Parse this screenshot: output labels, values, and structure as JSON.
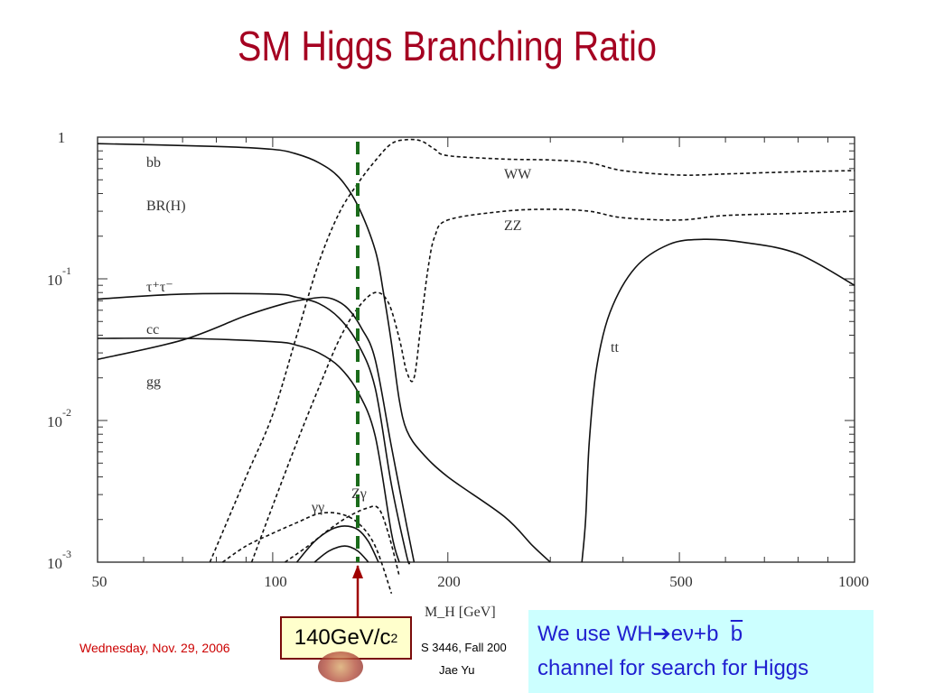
{
  "slide": {
    "title": "SM Higgs Branching Ratio"
  },
  "chart_data": {
    "type": "line",
    "x_scale": "log",
    "y_scale": "log",
    "xlabel": "M_H [GeV]",
    "ylabel": "BR(H)",
    "xlim": [
      50,
      1000
    ],
    "ylim": [
      0.001,
      1
    ],
    "x_ticks": [
      "50",
      "100",
      "200",
      "500",
      "1000"
    ],
    "y_ticks": [
      {
        "base": "1",
        "exp": ""
      },
      {
        "base": "10",
        "exp": "-1"
      },
      {
        "base": "10",
        "exp": "-2"
      },
      {
        "base": "10",
        "exp": "-3"
      }
    ],
    "series": [
      {
        "name": "bb",
        "dash": "solid",
        "points": [
          [
            50,
            0.9
          ],
          [
            80,
            0.86
          ],
          [
            100,
            0.82
          ],
          [
            110,
            0.76
          ],
          [
            120,
            0.66
          ],
          [
            130,
            0.52
          ],
          [
            140,
            0.33
          ],
          [
            150,
            0.16
          ],
          [
            155,
            0.08
          ],
          [
            160,
            0.035
          ],
          [
            165,
            0.014
          ],
          [
            170,
            0.0085
          ],
          [
            180,
            0.006
          ],
          [
            200,
            0.004
          ],
          [
            250,
            0.0021
          ],
          [
            280,
            0.0013
          ],
          [
            300,
            0.001
          ]
        ]
      },
      {
        "name": "τ⁺τ⁻",
        "dash": "solid",
        "points": [
          [
            50,
            0.072
          ],
          [
            70,
            0.078
          ],
          [
            100,
            0.078
          ],
          [
            110,
            0.074
          ],
          [
            120,
            0.067
          ],
          [
            130,
            0.053
          ],
          [
            140,
            0.035
          ],
          [
            150,
            0.017
          ],
          [
            160,
            0.0035
          ],
          [
            170,
            0.0011
          ],
          [
            172,
            0.001
          ]
        ]
      },
      {
        "name": "cc",
        "dash": "solid",
        "points": [
          [
            50,
            0.038
          ],
          [
            70,
            0.038
          ],
          [
            100,
            0.036
          ],
          [
            110,
            0.034
          ],
          [
            120,
            0.03
          ],
          [
            130,
            0.024
          ],
          [
            140,
            0.016
          ],
          [
            150,
            0.0078
          ],
          [
            160,
            0.0016
          ],
          [
            165,
            0.001
          ]
        ]
      },
      {
        "name": "gg",
        "dash": "solid",
        "points": [
          [
            50,
            0.027
          ],
          [
            70,
            0.037
          ],
          [
            90,
            0.055
          ],
          [
            105,
            0.067
          ],
          [
            115,
            0.072
          ],
          [
            122,
            0.074
          ],
          [
            128,
            0.071
          ],
          [
            135,
            0.061
          ],
          [
            142,
            0.045
          ],
          [
            150,
            0.027
          ],
          [
            160,
            0.0065
          ],
          [
            170,
            0.0018
          ],
          [
            175,
            0.001
          ]
        ]
      },
      {
        "name": "WW",
        "dash": "dashed",
        "points": [
          [
            78,
            0.001
          ],
          [
            90,
            0.004
          ],
          [
            100,
            0.011
          ],
          [
            110,
            0.04
          ],
          [
            120,
            0.13
          ],
          [
            130,
            0.29
          ],
          [
            140,
            0.47
          ],
          [
            150,
            0.68
          ],
          [
            160,
            0.9
          ],
          [
            170,
            0.96
          ],
          [
            180,
            0.94
          ],
          [
            190,
            0.82
          ],
          [
            200,
            0.74
          ],
          [
            250,
            0.7
          ],
          [
            300,
            0.69
          ],
          [
            350,
            0.66
          ],
          [
            400,
            0.58
          ],
          [
            500,
            0.54
          ],
          [
            600,
            0.55
          ],
          [
            800,
            0.57
          ],
          [
            1000,
            0.58
          ]
        ]
      },
      {
        "name": "ZZ",
        "dash": "dashed",
        "points": [
          [
            92,
            0.001
          ],
          [
            100,
            0.0025
          ],
          [
            110,
            0.007
          ],
          [
            120,
            0.017
          ],
          [
            130,
            0.037
          ],
          [
            140,
            0.062
          ],
          [
            150,
            0.08
          ],
          [
            158,
            0.068
          ],
          [
            165,
            0.038
          ],
          [
            170,
            0.022
          ],
          [
            175,
            0.02
          ],
          [
            180,
            0.05
          ],
          [
            185,
            0.12
          ],
          [
            190,
            0.2
          ],
          [
            200,
            0.26
          ],
          [
            250,
            0.3
          ],
          [
            300,
            0.31
          ],
          [
            350,
            0.3
          ],
          [
            400,
            0.27
          ],
          [
            500,
            0.26
          ],
          [
            600,
            0.28
          ],
          [
            800,
            0.29
          ],
          [
            1000,
            0.3
          ]
        ]
      },
      {
        "name": "tt",
        "dash": "solid",
        "points": [
          [
            340,
            0.001
          ],
          [
            345,
            0.002
          ],
          [
            350,
            0.007
          ],
          [
            360,
            0.023
          ],
          [
            380,
            0.058
          ],
          [
            420,
            0.12
          ],
          [
            480,
            0.175
          ],
          [
            550,
            0.19
          ],
          [
            650,
            0.18
          ],
          [
            800,
            0.15
          ],
          [
            1000,
            0.09
          ]
        ]
      },
      {
        "name": "γγ",
        "dash": "dashed",
        "points": [
          [
            82,
            0.001
          ],
          [
            90,
            0.0013
          ],
          [
            100,
            0.0016
          ],
          [
            110,
            0.0019
          ],
          [
            120,
            0.0022
          ],
          [
            130,
            0.0022
          ],
          [
            140,
            0.0019
          ],
          [
            150,
            0.0013
          ],
          [
            160,
            0.0006
          ]
        ]
      },
      {
        "name": "Zγ",
        "dash": "dashed",
        "points": [
          [
            105,
            0.001
          ],
          [
            115,
            0.0013
          ],
          [
            125,
            0.0017
          ],
          [
            135,
            0.0021
          ],
          [
            145,
            0.0024
          ],
          [
            152,
            0.0024
          ],
          [
            158,
            0.0016
          ],
          [
            165,
            0.0008
          ]
        ]
      },
      {
        "name": "",
        "dash": "solid",
        "points": [
          [
            110,
            0.001
          ],
          [
            118,
            0.0014
          ],
          [
            126,
            0.0017
          ],
          [
            133,
            0.0018
          ],
          [
            140,
            0.0017
          ],
          [
            146,
            0.0014
          ],
          [
            152,
            0.001
          ]
        ]
      },
      {
        "name": "",
        "dash": "solid",
        "points": [
          [
            118,
            0.001
          ],
          [
            125,
            0.0012
          ],
          [
            133,
            0.0013
          ],
          [
            140,
            0.0012
          ],
          [
            146,
            0.001
          ]
        ]
      }
    ],
    "curve_labels": [
      "bb",
      "BR(H)",
      "τ⁺τ⁻",
      "cc",
      "gg",
      "WW",
      "ZZ",
      "tt",
      "γγ",
      "Zγ"
    ],
    "marker": {
      "x": 140,
      "color": "#1a6b1a",
      "arrow_color": "#a00000"
    }
  },
  "annotations": {
    "mass_value": "140GeV/c",
    "mass_exp": "2",
    "note_line1_pre": "We use WH",
    "note_arrow": "➔",
    "note_line1_post": "eν+b",
    "note_bbar": "b",
    "note_line2": "channel for search for Higgs"
  },
  "footer": {
    "date": "Wednesday, Nov. 29, 2006",
    "course": "S 3446, Fall 200",
    "author": "Jae Yu"
  },
  "colors": {
    "title": "#a50021",
    "note_text": "#1f1fd0",
    "note_bg": "#ccffff",
    "callout_bg": "#ffffcc",
    "date_text": "#cc0000"
  }
}
